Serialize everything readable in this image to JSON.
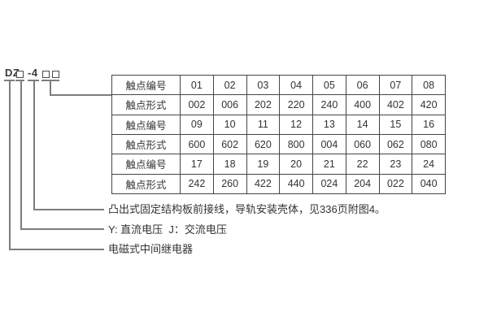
{
  "model_code": {
    "prefix": "DZ",
    "box1": "□",
    "series": "-4",
    "box2": "□□"
  },
  "table": {
    "rows": [
      {
        "label": "触点编号",
        "values": [
          "01",
          "02",
          "03",
          "04",
          "05",
          "06",
          "07",
          "08"
        ]
      },
      {
        "label": "触点形式",
        "values": [
          "002",
          "006",
          "202",
          "220",
          "240",
          "400",
          "402",
          "420"
        ]
      },
      {
        "label": "触点编号",
        "values": [
          "09",
          "10",
          "11",
          "12",
          "13",
          "14",
          "15",
          "16"
        ]
      },
      {
        "label": "触点形式",
        "values": [
          "600",
          "602",
          "620",
          "800",
          "004",
          "060",
          "062",
          "080"
        ]
      },
      {
        "label": "触点编号",
        "values": [
          "17",
          "18",
          "19",
          "20",
          "21",
          "22",
          "23",
          "24"
        ]
      },
      {
        "label": "触点形式",
        "values": [
          "242",
          "260",
          "422",
          "440",
          "024",
          "204",
          "022",
          "040"
        ]
      }
    ]
  },
  "legend": {
    "line1": "凸出式固定结构板前接线，导轨安装壳体，见336页附图4。",
    "line2": "Y: 直流电压  J：交流电压",
    "line3": "电磁式中间继电器"
  },
  "colors": {
    "text": "#333333",
    "table_border": "#454545",
    "leader_line": "#7d7d7d",
    "background": "#ffffff"
  }
}
